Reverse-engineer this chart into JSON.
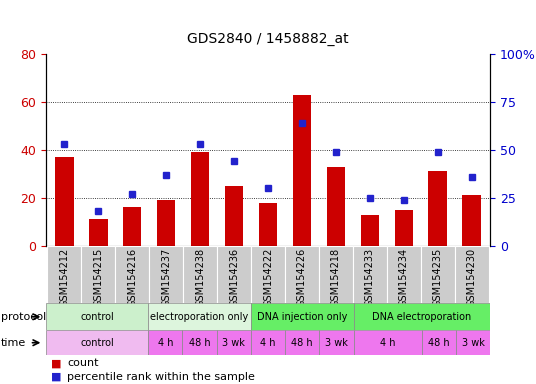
{
  "title": "GDS2840 / 1458882_at",
  "samples": [
    "GSM154212",
    "GSM154215",
    "GSM154216",
    "GSM154237",
    "GSM154238",
    "GSM154236",
    "GSM154222",
    "GSM154226",
    "GSM154218",
    "GSM154233",
    "GSM154234",
    "GSM154235",
    "GSM154230"
  ],
  "counts": [
    37,
    11,
    16,
    19,
    39,
    25,
    18,
    63,
    33,
    13,
    15,
    31,
    21
  ],
  "percentiles": [
    53,
    18,
    27,
    37,
    53,
    44,
    30,
    64,
    49,
    25,
    24,
    49,
    36
  ],
  "ylim_left": [
    0,
    80
  ],
  "ylim_right": [
    0,
    100
  ],
  "yticks_left": [
    0,
    20,
    40,
    60,
    80
  ],
  "yticks_right": [
    0,
    25,
    50,
    75,
    100
  ],
  "ytick_labels_left": [
    "0",
    "20",
    "40",
    "60",
    "80"
  ],
  "ytick_labels_right": [
    "0",
    "25",
    "50",
    "75",
    "100%"
  ],
  "bar_color": "#cc0000",
  "dot_color": "#2222cc",
  "protocol_groups": [
    {
      "label": "control",
      "start": 0,
      "end": 3,
      "color": "#ccf0cc"
    },
    {
      "label": "electroporation only",
      "start": 3,
      "end": 6,
      "color": "#ddf5dd"
    },
    {
      "label": "DNA injection only",
      "start": 6,
      "end": 9,
      "color": "#66ee66"
    },
    {
      "label": "DNA electroporation",
      "start": 9,
      "end": 13,
      "color": "#66ee66"
    }
  ],
  "time_groups": [
    {
      "label": "control",
      "start": 0,
      "end": 3,
      "color": "#f0bbf0"
    },
    {
      "label": "4 h",
      "start": 3,
      "end": 4,
      "color": "#ee77ee"
    },
    {
      "label": "48 h",
      "start": 4,
      "end": 5,
      "color": "#ee77ee"
    },
    {
      "label": "3 wk",
      "start": 5,
      "end": 6,
      "color": "#ee77ee"
    },
    {
      "label": "4 h",
      "start": 6,
      "end": 7,
      "color": "#ee77ee"
    },
    {
      "label": "48 h",
      "start": 7,
      "end": 8,
      "color": "#ee77ee"
    },
    {
      "label": "3 wk",
      "start": 8,
      "end": 9,
      "color": "#ee77ee"
    },
    {
      "label": "4 h",
      "start": 9,
      "end": 11,
      "color": "#ee77ee"
    },
    {
      "label": "48 h",
      "start": 11,
      "end": 12,
      "color": "#ee77ee"
    },
    {
      "label": "3 wk",
      "start": 12,
      "end": 13,
      "color": "#ee77ee"
    }
  ],
  "bg_color": "#ffffff",
  "tick_label_color_left": "#cc0000",
  "tick_label_color_right": "#0000cc",
  "sample_bg": "#cccccc",
  "legend_items": [
    {
      "color": "#cc0000",
      "marker": "s",
      "label": "count"
    },
    {
      "color": "#2222cc",
      "marker": "s",
      "label": "percentile rank within the sample"
    }
  ]
}
